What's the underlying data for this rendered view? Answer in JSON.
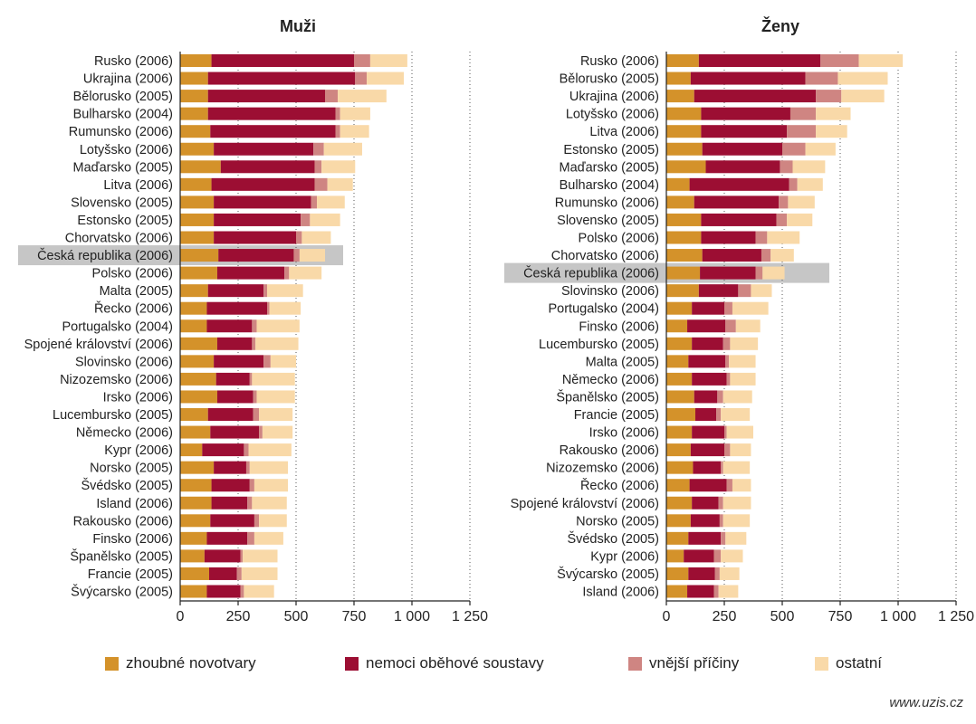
{
  "chart_data": [
    {
      "type": "bar",
      "orientation": "horizontal",
      "stacked": true,
      "title": "Muži",
      "xlim": [
        0,
        1250
      ],
      "xticks": [
        "0",
        "250",
        "500",
        "750",
        "1 000",
        "1 250"
      ],
      "xtick_values": [
        0,
        250,
        500,
        750,
        1000,
        1250
      ],
      "highlight_category": "Česká republika (2006)",
      "categories": [
        "Rusko (2006)",
        "Ukrajina (2006)",
        "Bělorusko (2005)",
        "Bulharsko (2004)",
        "Rumunsko (2006)",
        "Lotyšsko (2006)",
        "Maďarsko (2005)",
        "Litva (2006)",
        "Slovensko (2005)",
        "Estonsko (2005)",
        "Chorvatsko (2006)",
        "Česká republika (2006)",
        "Polsko (2006)",
        "Malta (2005)",
        "Řecko (2006)",
        "Portugalsko (2004)",
        "Spojené království (2006)",
        "Slovinsko (2006)",
        "Nizozemsko (2006)",
        "Irsko (2006)",
        "Lucembursko (2005)",
        "Německo (2006)",
        "Kypr (2006)",
        "Norsko (2005)",
        "Švédsko (2005)",
        "Island (2006)",
        "Rakousko (2006)",
        "Finsko (2006)",
        "Španělsko (2005)",
        "Francie (2005)",
        "Švýcarsko (2005)"
      ],
      "series": [
        {
          "name": "zhoubné novotvary",
          "values": [
            135,
            120,
            120,
            120,
            130,
            145,
            175,
            135,
            145,
            145,
            145,
            165,
            160,
            120,
            115,
            115,
            160,
            145,
            155,
            160,
            120,
            130,
            95,
            145,
            135,
            135,
            130,
            115,
            105,
            125,
            115
          ]
        },
        {
          "name": "nemoci oběhové soustavy",
          "values": [
            615,
            635,
            505,
            550,
            540,
            430,
            405,
            445,
            420,
            375,
            355,
            325,
            290,
            240,
            260,
            195,
            150,
            215,
            145,
            155,
            195,
            210,
            180,
            140,
            165,
            155,
            190,
            175,
            155,
            120,
            145
          ]
        },
        {
          "name": "vnější příčiny",
          "values": [
            70,
            50,
            55,
            20,
            20,
            45,
            30,
            55,
            25,
            40,
            25,
            25,
            20,
            15,
            10,
            20,
            15,
            30,
            10,
            15,
            25,
            15,
            20,
            15,
            20,
            20,
            20,
            30,
            10,
            20,
            15
          ]
        },
        {
          "name": "ostatní",
          "values": [
            160,
            160,
            210,
            130,
            125,
            165,
            145,
            110,
            120,
            130,
            125,
            110,
            140,
            155,
            135,
            185,
            185,
            110,
            185,
            165,
            145,
            130,
            185,
            165,
            145,
            150,
            120,
            125,
            150,
            155,
            130
          ]
        }
      ]
    },
    {
      "type": "bar",
      "orientation": "horizontal",
      "stacked": true,
      "title": "Ženy",
      "xlim": [
        0,
        1250
      ],
      "xticks": [
        "0",
        "250",
        "500",
        "750",
        "1 000",
        "1 250"
      ],
      "xtick_values": [
        0,
        250,
        500,
        750,
        1000,
        1250
      ],
      "highlight_category": "Česká republika (2006)",
      "categories": [
        "Rusko (2006)",
        "Bělorusko (2005)",
        "Ukrajina (2006)",
        "Lotyšsko (2006)",
        "Litva (2006)",
        "Estonsko (2005)",
        "Maďarsko (2005)",
        "Bulharsko (2004)",
        "Rumunsko (2006)",
        "Slovensko (2005)",
        "Polsko (2006)",
        "Chorvatsko (2006)",
        "Česká republika (2006)",
        "Slovinsko (2006)",
        "Portugalsko (2004)",
        "Finsko (2006)",
        "Lucembursko (2005)",
        "Malta (2005)",
        "Německo (2006)",
        "Španělsko (2005)",
        "Francie (2005)",
        "Irsko (2006)",
        "Rakousko (2006)",
        "Nizozemsko (2006)",
        "Řecko (2006)",
        "Spojené království (2006)",
        "Norsko (2005)",
        "Švédsko (2005)",
        "Kypr (2006)",
        "Švýcarsko (2005)",
        "Island (2006)"
      ],
      "series": [
        {
          "name": "zhoubné novotvary",
          "values": [
            140,
            105,
            120,
            150,
            150,
            155,
            170,
            100,
            120,
            150,
            150,
            155,
            145,
            140,
            110,
            90,
            110,
            95,
            110,
            120,
            125,
            110,
            105,
            115,
            100,
            110,
            105,
            95,
            75,
            95,
            90
          ]
        },
        {
          "name": "nemoci oběhové soustavy",
          "values": [
            525,
            495,
            525,
            385,
            370,
            345,
            320,
            430,
            365,
            325,
            235,
            255,
            240,
            170,
            140,
            165,
            135,
            160,
            150,
            100,
            90,
            140,
            145,
            120,
            160,
            115,
            125,
            140,
            130,
            115,
            115
          ]
        },
        {
          "name": "vnější příčiny",
          "values": [
            165,
            140,
            110,
            110,
            125,
            100,
            55,
            35,
            40,
            45,
            50,
            40,
            30,
            55,
            35,
            45,
            30,
            15,
            15,
            25,
            20,
            10,
            25,
            10,
            25,
            20,
            15,
            20,
            30,
            20,
            20
          ]
        },
        {
          "name": "ostatní",
          "values": [
            190,
            215,
            185,
            150,
            135,
            130,
            140,
            110,
            115,
            110,
            140,
            100,
            95,
            90,
            155,
            105,
            120,
            115,
            110,
            125,
            125,
            115,
            90,
            115,
            80,
            120,
            115,
            90,
            95,
            85,
            85
          ]
        }
      ]
    }
  ],
  "legend": [
    {
      "label": "zhoubné novotvary",
      "color": "#d4922a"
    },
    {
      "label": "nemoci oběhové soustavy",
      "color": "#9c0e33"
    },
    {
      "label": "vnější příčiny",
      "color": "#cf8582"
    },
    {
      "label": "ostatní",
      "color": "#f9d9a8"
    }
  ],
  "colors": {
    "highlight": "#c6c6c6",
    "grid": "#555555",
    "axis": "#222222",
    "text": "#222222"
  },
  "source": "www.uzis.cz"
}
